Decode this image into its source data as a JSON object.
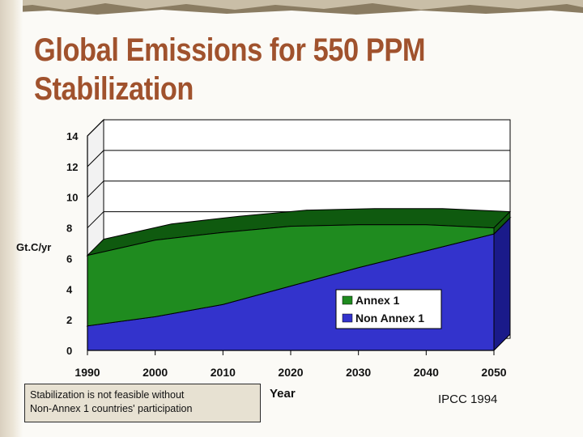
{
  "slide": {
    "title": "Global Emissions for 550 PPM Stabilization",
    "caption": [
      "Stabilization is not feasible without",
      "Non-Annex 1 countries' participation"
    ],
    "source": "IPCC 1994"
  },
  "colors": {
    "title": "#a0522d",
    "annex1": "#1f8b1f",
    "non_annex1": "#3333cc",
    "plot_bg": "#ffffff"
  },
  "chart_data": {
    "type": "area",
    "stacked": true,
    "x": [
      1990,
      2000,
      2010,
      2020,
      2030,
      2040,
      2050
    ],
    "xlabel": "Year",
    "ylabel": "Gt.C/yr",
    "yticks": [
      0,
      2,
      4,
      6,
      8,
      10,
      12,
      14
    ],
    "ylim": [
      0,
      14
    ],
    "grid": true,
    "legend_placement": "bottom-right",
    "series": [
      {
        "name": "Non Annex 1",
        "values": [
          1.6,
          2.2,
          3.0,
          4.2,
          5.4,
          6.5,
          7.6
        ]
      },
      {
        "name": "Annex 1",
        "values": [
          4.6,
          5.0,
          4.7,
          3.9,
          2.8,
          1.7,
          0.4
        ]
      }
    ]
  }
}
